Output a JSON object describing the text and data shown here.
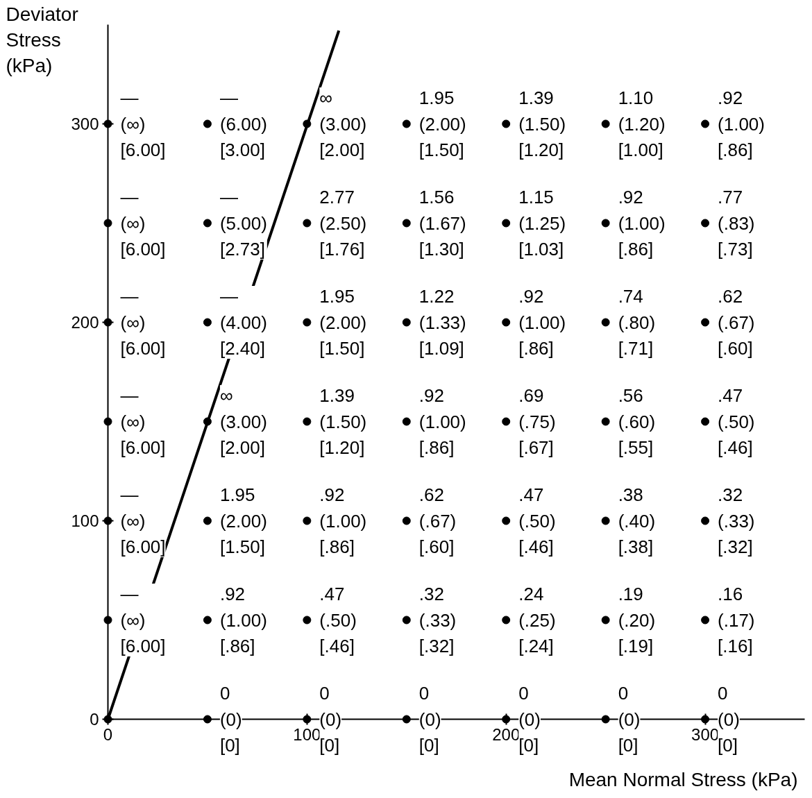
{
  "chart_data": {
    "type": "scatter",
    "xlabel": "Mean Normal Stress (kPa)",
    "ylabel": "Deviator Stress (kPa)",
    "xlim": [
      0,
      350
    ],
    "ylim": [
      0,
      350
    ],
    "xticks": [
      0,
      100,
      200,
      300
    ],
    "yticks": [
      0,
      100,
      200,
      300
    ],
    "grid": false,
    "series": [
      {
        "color": "#000000",
        "marker": "circle",
        "x": [
          0,
          50,
          100,
          150,
          200,
          250,
          300,
          0,
          50,
          100,
          150,
          200,
          250,
          300,
          0,
          50,
          100,
          150,
          200,
          250,
          300,
          0,
          50,
          100,
          150,
          200,
          250,
          300,
          0,
          50,
          100,
          150,
          200,
          250,
          300,
          0,
          50,
          100,
          150,
          200,
          250,
          300,
          0,
          50,
          100,
          150,
          200,
          250,
          300
        ],
        "values": [
          300,
          300,
          300,
          300,
          300,
          300,
          300,
          250,
          250,
          250,
          250,
          250,
          250,
          250,
          200,
          200,
          200,
          200,
          200,
          200,
          200,
          150,
          150,
          150,
          150,
          150,
          150,
          150,
          100,
          100,
          100,
          100,
          100,
          100,
          100,
          50,
          50,
          50,
          50,
          50,
          50,
          50,
          0,
          0,
          0,
          0,
          0,
          0,
          0
        ]
      },
      {
        "type": "line",
        "color": "#000000",
        "x": [
          0,
          116
        ],
        "values": [
          0,
          347
        ]
      }
    ],
    "annotations": [
      {
        "text": "—\n(∞)\n[6.00]",
        "x": 0,
        "y": 300
      },
      {
        "text": "—\n(6.00)\n[3.00]",
        "x": 50,
        "y": 300
      },
      {
        "text": "∞\n(3.00)\n[2.00]",
        "x": 100,
        "y": 300
      },
      {
        "text": "1.95\n(2.00)\n[1.50]",
        "x": 150,
        "y": 300
      },
      {
        "text": "1.39\n(1.50)\n[1.20]",
        "x": 200,
        "y": 300
      },
      {
        "text": "1.10\n(1.20)\n[1.00]",
        "x": 250,
        "y": 300
      },
      {
        "text": ".92\n(1.00)\n[.86]",
        "x": 300,
        "y": 300
      },
      {
        "text": "—\n(∞)\n[6.00]",
        "x": 0,
        "y": 250
      },
      {
        "text": "—\n(5.00)\n[2.73]",
        "x": 50,
        "y": 250
      },
      {
        "text": "2.77\n(2.50)\n[1.76]",
        "x": 100,
        "y": 250
      },
      {
        "text": "1.56\n(1.67)\n[1.30]",
        "x": 150,
        "y": 250
      },
      {
        "text": "1.15\n(1.25)\n[1.03]",
        "x": 200,
        "y": 250
      },
      {
        "text": ".92\n(1.00)\n[.86]",
        "x": 250,
        "y": 250
      },
      {
        "text": ".77\n(.83)\n[.73]",
        "x": 300,
        "y": 250
      },
      {
        "text": "—\n(∞)\n[6.00]",
        "x": 0,
        "y": 200
      },
      {
        "text": "—\n(4.00)\n[2.40]",
        "x": 50,
        "y": 200
      },
      {
        "text": "1.95\n(2.00)\n[1.50]",
        "x": 100,
        "y": 200
      },
      {
        "text": "1.22\n(1.33)\n[1.09]",
        "x": 150,
        "y": 200
      },
      {
        "text": ".92\n(1.00)\n[.86]",
        "x": 200,
        "y": 200
      },
      {
        "text": ".74\n(.80)\n[.71]",
        "x": 250,
        "y": 200
      },
      {
        "text": ".62\n(.67)\n[.60]",
        "x": 300,
        "y": 200
      },
      {
        "text": "—\n(∞)\n[6.00]",
        "x": 0,
        "y": 150
      },
      {
        "text": "∞\n(3.00)\n[2.00]",
        "x": 50,
        "y": 150
      },
      {
        "text": "1.39\n(1.50)\n[1.20]",
        "x": 100,
        "y": 150
      },
      {
        "text": ".92\n(1.00)\n[.86]",
        "x": 150,
        "y": 150
      },
      {
        "text": ".69\n(.75)\n[.67]",
        "x": 200,
        "y": 150
      },
      {
        "text": ".56\n(.60)\n[.55]",
        "x": 250,
        "y": 150
      },
      {
        "text": ".47\n(.50)\n[.46]",
        "x": 300,
        "y": 150
      },
      {
        "text": "—\n(∞)\n[6.00]",
        "x": 0,
        "y": 100
      },
      {
        "text": "1.95\n(2.00)\n[1.50]",
        "x": 50,
        "y": 100
      },
      {
        "text": ".92\n(1.00)\n[.86]",
        "x": 100,
        "y": 100
      },
      {
        "text": ".62\n(.67)\n[.60]",
        "x": 150,
        "y": 100
      },
      {
        "text": ".47\n(.50)\n[.46]",
        "x": 200,
        "y": 100
      },
      {
        "text": ".38\n(.40)\n[.38]",
        "x": 250,
        "y": 100
      },
      {
        "text": ".32\n(.33)\n[.32]",
        "x": 300,
        "y": 100
      },
      {
        "text": "—\n(∞)\n[6.00]",
        "x": 0,
        "y": 50
      },
      {
        "text": ".92\n(1.00)\n[.86]",
        "x": 50,
        "y": 50
      },
      {
        "text": ".47\n(.50)\n[.46]",
        "x": 100,
        "y": 50
      },
      {
        "text": ".32\n(.33)\n[.32]",
        "x": 150,
        "y": 50
      },
      {
        "text": ".24\n(.25)\n[.24]",
        "x": 200,
        "y": 50
      },
      {
        "text": ".19\n(.20)\n[.19]",
        "x": 250,
        "y": 50
      },
      {
        "text": ".16\n(.17)\n[.16]",
        "x": 300,
        "y": 50
      },
      {
        "text": "0\n(0)\n[0]",
        "x": 50,
        "y": 0
      },
      {
        "text": "0\n(0)\n[0]",
        "x": 100,
        "y": 0
      },
      {
        "text": "0\n(0)\n[0]",
        "x": 150,
        "y": 0
      },
      {
        "text": "0\n(0)\n[0]",
        "x": 200,
        "y": 0
      },
      {
        "text": "0\n(0)\n[0]",
        "x": 250,
        "y": 0
      },
      {
        "text": "0\n(0)\n[0]",
        "x": 300,
        "y": 0
      }
    ]
  }
}
